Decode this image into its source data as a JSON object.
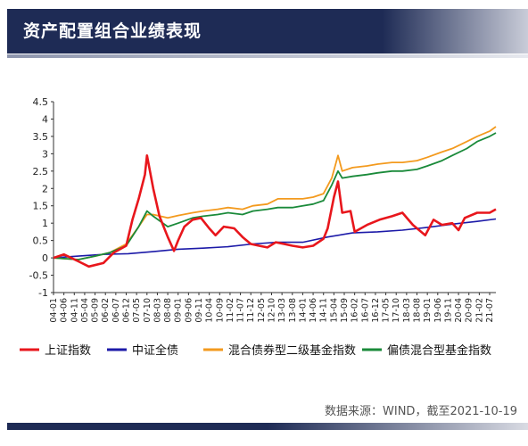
{
  "header": {
    "title": "资产配置组合业绩表现"
  },
  "source": "数据来源：WIND，截至2021-10-19",
  "colors": {
    "header_bg": "#1e2b55",
    "sse": "#e8161c",
    "bond": "#1c1aa8",
    "mixed_bond": "#f39a1e",
    "partial_bond": "#1a8a3a"
  },
  "chart_data": {
    "type": "line",
    "title": "",
    "xlabel": "",
    "ylabel": "",
    "ylim": [
      -1,
      4.5
    ],
    "yticks": [
      "-1",
      "-0.5",
      "0",
      "0.5",
      "1",
      "1.5",
      "2",
      "2.5",
      "3",
      "3.5",
      "4",
      "4.5"
    ],
    "grid": false,
    "legend_position": "bottom",
    "x_ticks": [
      "04-01",
      "04-06",
      "04-11",
      "05-04",
      "05-09",
      "06-02",
      "06-07",
      "06-12",
      "07-05",
      "07-10",
      "08-03",
      "08-08",
      "09-01",
      "09-06",
      "09-11",
      "10-04",
      "10-09",
      "11-02",
      "11-07",
      "11-12",
      "12-05",
      "12-10",
      "13-03",
      "13-08",
      "14-01",
      "14-06",
      "14-11",
      "15-04",
      "15-09",
      "16-02",
      "16-07",
      "16-12",
      "17-05",
      "17-10",
      "18-03",
      "18-08",
      "19-01",
      "19-06",
      "19-11",
      "20-04",
      "20-09",
      "21-02",
      "21-07"
    ],
    "x_tick_labels": [
      "04-01",
      "04-06",
      "04-11",
      "05-04",
      "05-09",
      "06-02",
      "06-07",
      "06-12",
      "07-05",
      "07-10",
      "08-03",
      "08-08",
      "09-01",
      "09-06",
      "09-11",
      "10-04",
      "10-09",
      "11-02",
      "11-07",
      "11-12",
      "12-05",
      "12-10",
      "13-03",
      "13-08",
      "14-01",
      "14-06",
      "14-11",
      "15-04",
      "15-09",
      "16-02",
      "16-07",
      "16-12",
      "17-05",
      "17-10",
      "18-03",
      "18-08",
      "19-01",
      "19-06",
      "19-11",
      "20-04",
      "20-09",
      "21-02",
      "21-07"
    ],
    "series": [
      {
        "name": "上证指数",
        "color": "#e8161c",
        "x": [
          "04-01",
          "04-06",
          "05-01",
          "05-06",
          "06-01",
          "06-06",
          "06-12",
          "07-03",
          "07-06",
          "07-09",
          "07-10",
          "08-01",
          "08-04",
          "08-08",
          "08-11",
          "09-01",
          "09-04",
          "09-08",
          "09-12",
          "10-04",
          "10-07",
          "10-11",
          "11-04",
          "11-08",
          "11-12",
          "12-04",
          "12-08",
          "12-12",
          "13-04",
          "13-08",
          "14-01",
          "14-06",
          "14-11",
          "15-01",
          "15-04",
          "15-06",
          "15-08",
          "15-12",
          "16-02",
          "16-08",
          "17-02",
          "17-08",
          "18-01",
          "18-06",
          "18-12",
          "19-04",
          "19-08",
          "20-01",
          "20-04",
          "20-07",
          "21-01",
          "21-07",
          "21-10"
        ],
        "values": [
          0.0,
          0.1,
          -0.1,
          -0.25,
          -0.15,
          0.15,
          0.35,
          1.1,
          1.7,
          2.4,
          2.95,
          2.0,
          1.2,
          0.6,
          0.2,
          0.5,
          0.9,
          1.1,
          1.15,
          0.85,
          0.65,
          0.9,
          0.85,
          0.6,
          0.4,
          0.35,
          0.3,
          0.45,
          0.4,
          0.35,
          0.3,
          0.35,
          0.55,
          0.85,
          1.75,
          2.2,
          1.3,
          1.35,
          0.75,
          0.95,
          1.1,
          1.2,
          1.3,
          0.95,
          0.65,
          1.1,
          0.95,
          1.0,
          0.8,
          1.15,
          1.3,
          1.3,
          1.4
        ]
      },
      {
        "name": "中证全债",
        "color": "#1c1aa8",
        "x": [
          "04-01",
          "05-01",
          "06-01",
          "07-01",
          "08-01",
          "09-01",
          "10-01",
          "11-01",
          "12-01",
          "13-01",
          "14-01",
          "15-01",
          "16-01",
          "17-01",
          "18-01",
          "19-01",
          "20-01",
          "21-01",
          "21-10"
        ],
        "values": [
          0.0,
          0.05,
          0.1,
          0.12,
          0.18,
          0.25,
          0.28,
          0.32,
          0.4,
          0.45,
          0.45,
          0.6,
          0.72,
          0.75,
          0.8,
          0.88,
          0.97,
          1.05,
          1.12
        ]
      },
      {
        "name": "混合债券型二级基金指数",
        "color": "#f39a1e",
        "x": [
          "04-01",
          "05-01",
          "05-09",
          "06-04",
          "06-12",
          "07-06",
          "07-10",
          "08-01",
          "08-08",
          "09-01",
          "09-08",
          "10-01",
          "10-08",
          "11-01",
          "11-08",
          "12-01",
          "12-08",
          "13-01",
          "13-08",
          "14-01",
          "14-06",
          "14-11",
          "15-03",
          "15-06",
          "15-08",
          "16-01",
          "16-08",
          "17-01",
          "17-08",
          "18-01",
          "18-08",
          "19-01",
          "19-08",
          "20-01",
          "20-08",
          "21-01",
          "21-07",
          "21-10"
        ],
        "values": [
          0.0,
          -0.05,
          0.05,
          0.15,
          0.4,
          0.9,
          1.25,
          1.25,
          1.15,
          1.22,
          1.3,
          1.35,
          1.4,
          1.45,
          1.4,
          1.5,
          1.55,
          1.7,
          1.7,
          1.7,
          1.75,
          1.85,
          2.3,
          2.95,
          2.5,
          2.6,
          2.65,
          2.7,
          2.75,
          2.75,
          2.8,
          2.9,
          3.05,
          3.15,
          3.35,
          3.5,
          3.65,
          3.78
        ]
      },
      {
        "name": "偏债混合型基金指数",
        "color": "#1a8a3a",
        "x": [
          "04-01",
          "05-01",
          "05-09",
          "06-04",
          "06-12",
          "07-06",
          "07-10",
          "08-01",
          "08-08",
          "09-01",
          "09-08",
          "10-01",
          "10-08",
          "11-01",
          "11-08",
          "12-01",
          "12-08",
          "13-01",
          "13-08",
          "14-01",
          "14-06",
          "14-11",
          "15-03",
          "15-06",
          "15-08",
          "16-01",
          "16-08",
          "17-01",
          "17-08",
          "18-01",
          "18-08",
          "19-01",
          "19-08",
          "20-01",
          "20-08",
          "21-01",
          "21-07",
          "21-10"
        ],
        "values": [
          0.0,
          -0.05,
          0.05,
          0.15,
          0.35,
          0.9,
          1.35,
          1.2,
          0.9,
          1.0,
          1.15,
          1.2,
          1.25,
          1.3,
          1.25,
          1.35,
          1.4,
          1.45,
          1.45,
          1.5,
          1.55,
          1.65,
          2.1,
          2.5,
          2.3,
          2.35,
          2.4,
          2.45,
          2.5,
          2.5,
          2.55,
          2.65,
          2.8,
          2.95,
          3.15,
          3.35,
          3.5,
          3.6
        ]
      }
    ]
  }
}
